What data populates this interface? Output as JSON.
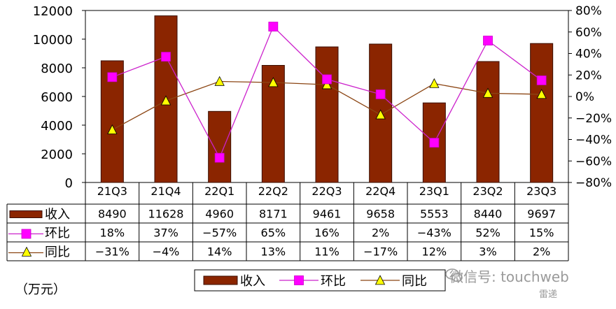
{
  "chart_data": {
    "type": "bar",
    "categories": [
      "21Q3",
      "21Q4",
      "22Q1",
      "22Q2",
      "22Q3",
      "22Q4",
      "23Q1",
      "23Q2",
      "23Q3"
    ],
    "series": [
      {
        "name": "收入",
        "kind": "bar",
        "axis": "left",
        "values": [
          8490,
          11628,
          4960,
          8171,
          9461,
          9658,
          5553,
          8440,
          9697
        ],
        "labels": [
          "8490",
          "11628",
          "4960",
          "8171",
          "9461",
          "9658",
          "5553",
          "8440",
          "9697"
        ]
      },
      {
        "name": "环比",
        "kind": "line",
        "axis": "right",
        "values": [
          18,
          37,
          -57,
          65,
          16,
          2,
          -43,
          52,
          15
        ],
        "labels": [
          "18%",
          "37%",
          "−57%",
          "65%",
          "16%",
          "2%",
          "−43%",
          "52%",
          "15%"
        ]
      },
      {
        "name": "同比",
        "kind": "line",
        "axis": "right",
        "values": [
          -31,
          -4,
          14,
          13,
          11,
          -17,
          12,
          3,
          2
        ],
        "labels": [
          "−31%",
          "−4%",
          "14%",
          "13%",
          "11%",
          "−17%",
          "12%",
          "3%",
          "2%"
        ]
      }
    ],
    "y_left": {
      "min": 0,
      "max": 12000,
      "ticks": [
        "0",
        "2000",
        "4000",
        "6000",
        "8000",
        "10000",
        "12000"
      ]
    },
    "y_right": {
      "min": -80,
      "max": 80,
      "ticks": [
        "−80%",
        "−60%",
        "−40%",
        "−20%",
        "0%",
        "20%",
        "40%",
        "60%",
        "80%"
      ]
    },
    "unit_label": "（万元）",
    "legend_position": "bottom",
    "grid": false,
    "colors": {
      "bar": "#8B2500",
      "bar_edge": "#3a0e00",
      "mom": "#FF00FF",
      "mom_line": "#CC22CC",
      "yoy": "#FFFF00",
      "yoy_line": "#8B4513"
    }
  },
  "watermark": {
    "text": "微信号: touchweb",
    "sub": "雷递"
  }
}
